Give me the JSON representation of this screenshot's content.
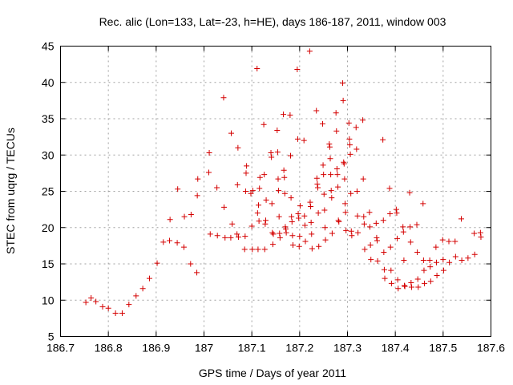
{
  "chart_data": {
    "type": "scatter",
    "title": "Rec. alic (Lon=133, Lat=-23, h=HE), days 186-187, 2011, window 003",
    "xlabel": "GPS time / Days of year 2011",
    "ylabel": "STEC from uqrg / TECUs",
    "xlim": [
      186.7,
      187.6
    ],
    "ylim": [
      5,
      45
    ],
    "xticks": [
      "186.7",
      "186.8",
      "186.9",
      "187",
      "187.1",
      "187.2",
      "187.3",
      "187.4",
      "187.5",
      "187.6"
    ],
    "yticks": [
      "5",
      "10",
      "15",
      "20",
      "25",
      "30",
      "35",
      "40",
      "45"
    ],
    "grid": true,
    "marker": "plus",
    "color": "#d40000",
    "points": [
      [
        186.753,
        9.7
      ],
      [
        186.764,
        10.3
      ],
      [
        186.774,
        9.8
      ],
      [
        186.788,
        9.1
      ],
      [
        186.8,
        8.9
      ],
      [
        186.815,
        8.2
      ],
      [
        186.829,
        8.2
      ],
      [
        186.843,
        9.4
      ],
      [
        186.858,
        10.6
      ],
      [
        186.872,
        11.6
      ],
      [
        186.886,
        13.0
      ],
      [
        186.902,
        15.1
      ],
      [
        186.915,
        18.0
      ],
      [
        186.928,
        18.2
      ],
      [
        186.929,
        21.1
      ],
      [
        186.944,
        17.9
      ],
      [
        186.945,
        25.3
      ],
      [
        186.958,
        17.3
      ],
      [
        186.959,
        21.5
      ],
      [
        186.972,
        15.0
      ],
      [
        186.973,
        21.8
      ],
      [
        186.985,
        13.8
      ],
      [
        186.986,
        24.4
      ],
      [
        186.987,
        26.7
      ],
      [
        187.01,
        27.6
      ],
      [
        187.011,
        30.3
      ],
      [
        187.013,
        19.1
      ],
      [
        187.027,
        25.5
      ],
      [
        187.028,
        18.9
      ],
      [
        187.041,
        37.9
      ],
      [
        187.042,
        22.8
      ],
      [
        187.044,
        18.6
      ],
      [
        187.056,
        18.6
      ],
      [
        187.057,
        33.0
      ],
      [
        187.059,
        20.5
      ],
      [
        187.069,
        19.1
      ],
      [
        187.07,
        25.9
      ],
      [
        187.071,
        31.0
      ],
      [
        187.072,
        18.7
      ],
      [
        187.085,
        17.0
      ],
      [
        187.086,
        18.8
      ],
      [
        187.087,
        25.0
      ],
      [
        187.088,
        27.5
      ],
      [
        187.089,
        28.5
      ],
      [
        187.098,
        24.7
      ],
      [
        187.1,
        20.2
      ],
      [
        187.101,
        17.0
      ],
      [
        187.102,
        25.1
      ],
      [
        187.111,
        41.9
      ],
      [
        187.112,
        22.0
      ],
      [
        187.113,
        17.0
      ],
      [
        187.114,
        23.1
      ],
      [
        187.115,
        20.9
      ],
      [
        187.116,
        25.4
      ],
      [
        187.117,
        26.9
      ],
      [
        187.125,
        34.2
      ],
      [
        187.126,
        27.3
      ],
      [
        187.127,
        17.0
      ],
      [
        187.128,
        20.5
      ],
      [
        187.129,
        21.0
      ],
      [
        187.13,
        23.8
      ],
      [
        187.14,
        30.3
      ],
      [
        187.141,
        29.7
      ],
      [
        187.142,
        23.3
      ],
      [
        187.143,
        19.3
      ],
      [
        187.144,
        17.7
      ],
      [
        187.145,
        19.1
      ],
      [
        187.153,
        33.4
      ],
      [
        187.154,
        30.4
      ],
      [
        187.155,
        26.7
      ],
      [
        187.156,
        25.1
      ],
      [
        187.157,
        21.5
      ],
      [
        187.158,
        19.2
      ],
      [
        187.159,
        18.6
      ],
      [
        187.166,
        35.6
      ],
      [
        187.167,
        27.9
      ],
      [
        187.168,
        26.9
      ],
      [
        187.169,
        24.7
      ],
      [
        187.17,
        20.1
      ],
      [
        187.171,
        19.8
      ],
      [
        187.172,
        19.3
      ],
      [
        187.18,
        35.5
      ],
      [
        187.181,
        29.9
      ],
      [
        187.182,
        24.1
      ],
      [
        187.183,
        21.5
      ],
      [
        187.184,
        20.8
      ],
      [
        187.185,
        18.9
      ],
      [
        187.186,
        17.6
      ],
      [
        187.195,
        41.8
      ],
      [
        187.196,
        32.2
      ],
      [
        187.197,
        21.9
      ],
      [
        187.198,
        21.3
      ],
      [
        187.199,
        17.4
      ],
      [
        187.2,
        18.8
      ],
      [
        187.201,
        23.0
      ],
      [
        187.209,
        32.0
      ],
      [
        187.21,
        21.6
      ],
      [
        187.211,
        20.3
      ],
      [
        187.212,
        18.1
      ],
      [
        187.221,
        44.3
      ],
      [
        187.222,
        23.5
      ],
      [
        187.223,
        22.9
      ],
      [
        187.224,
        20.7
      ],
      [
        187.225,
        19.1
      ],
      [
        187.226,
        17.1
      ],
      [
        187.235,
        36.1
      ],
      [
        187.236,
        26.8
      ],
      [
        187.237,
        26.0
      ],
      [
        187.238,
        25.5
      ],
      [
        187.239,
        22.0
      ],
      [
        187.24,
        17.4
      ],
      [
        187.248,
        34.3
      ],
      [
        187.249,
        28.6
      ],
      [
        187.25,
        27.3
      ],
      [
        187.251,
        24.6
      ],
      [
        187.252,
        22.4
      ],
      [
        187.253,
        20.0
      ],
      [
        187.254,
        18.3
      ],
      [
        187.262,
        31.5
      ],
      [
        187.263,
        31.1
      ],
      [
        187.264,
        29.5
      ],
      [
        187.265,
        27.3
      ],
      [
        187.266,
        25.1
      ],
      [
        187.267,
        24.1
      ],
      [
        187.268,
        19.2
      ],
      [
        187.276,
        35.8
      ],
      [
        187.277,
        33.3
      ],
      [
        187.278,
        28.1
      ],
      [
        187.279,
        27.3
      ],
      [
        187.28,
        25.6
      ],
      [
        187.281,
        21.0
      ],
      [
        187.282,
        20.8
      ],
      [
        187.29,
        39.9
      ],
      [
        187.291,
        37.5
      ],
      [
        187.292,
        29.0
      ],
      [
        187.293,
        28.8
      ],
      [
        187.294,
        26.7
      ],
      [
        187.295,
        23.3
      ],
      [
        187.296,
        22.1
      ],
      [
        187.297,
        19.6
      ],
      [
        187.303,
        34.4
      ],
      [
        187.304,
        32.2
      ],
      [
        187.305,
        31.4
      ],
      [
        187.306,
        30.1
      ],
      [
        187.307,
        24.7
      ],
      [
        187.308,
        19.5
      ],
      [
        187.309,
        18.9
      ],
      [
        187.318,
        33.8
      ],
      [
        187.319,
        30.8
      ],
      [
        187.32,
        25.0
      ],
      [
        187.321,
        21.6
      ],
      [
        187.322,
        19.3
      ],
      [
        187.332,
        34.8
      ],
      [
        187.333,
        26.7
      ],
      [
        187.334,
        21.5
      ],
      [
        187.335,
        20.5
      ],
      [
        187.336,
        17.0
      ],
      [
        187.346,
        22.1
      ],
      [
        187.347,
        20.1
      ],
      [
        187.348,
        17.6
      ],
      [
        187.349,
        15.6
      ],
      [
        187.36,
        20.6
      ],
      [
        187.361,
        18.6
      ],
      [
        187.362,
        18.2
      ],
      [
        187.363,
        15.4
      ],
      [
        187.374,
        32.1
      ],
      [
        187.375,
        21.0
      ],
      [
        187.376,
        16.6
      ],
      [
        187.377,
        14.2
      ],
      [
        187.378,
        13.0
      ],
      [
        187.388,
        25.4
      ],
      [
        187.389,
        21.9
      ],
      [
        187.39,
        17.3
      ],
      [
        187.391,
        14.1
      ],
      [
        187.392,
        12.3
      ],
      [
        187.402,
        22.5
      ],
      [
        187.403,
        22.0
      ],
      [
        187.404,
        18.5
      ],
      [
        187.405,
        12.8
      ],
      [
        187.406,
        11.6
      ],
      [
        187.416,
        20.1
      ],
      [
        187.417,
        19.4
      ],
      [
        187.418,
        15.5
      ],
      [
        187.419,
        12.0
      ],
      [
        187.42,
        11.9
      ],
      [
        187.43,
        24.8
      ],
      [
        187.431,
        20.1
      ],
      [
        187.432,
        18.0
      ],
      [
        187.433,
        12.4
      ],
      [
        187.434,
        11.8
      ],
      [
        187.445,
        20.4
      ],
      [
        187.446,
        16.6
      ],
      [
        187.447,
        12.9
      ],
      [
        187.448,
        11.8
      ],
      [
        187.458,
        23.3
      ],
      [
        187.459,
        15.5
      ],
      [
        187.46,
        14.1
      ],
      [
        187.461,
        12.3
      ],
      [
        187.472,
        15.5
      ],
      [
        187.473,
        14.6
      ],
      [
        187.474,
        12.6
      ],
      [
        187.485,
        17.3
      ],
      [
        187.486,
        15.2
      ],
      [
        187.487,
        13.4
      ],
      [
        187.499,
        18.3
      ],
      [
        187.5,
        15.6
      ],
      [
        187.501,
        14.1
      ],
      [
        187.512,
        18.1
      ],
      [
        187.513,
        15.2
      ],
      [
        187.525,
        18.1
      ],
      [
        187.526,
        16.0
      ],
      [
        187.538,
        21.2
      ],
      [
        187.539,
        15.5
      ],
      [
        187.552,
        15.8
      ],
      [
        187.565,
        19.2
      ],
      [
        187.566,
        16.3
      ],
      [
        187.578,
        19.3
      ],
      [
        187.579,
        18.7
      ]
    ]
  }
}
